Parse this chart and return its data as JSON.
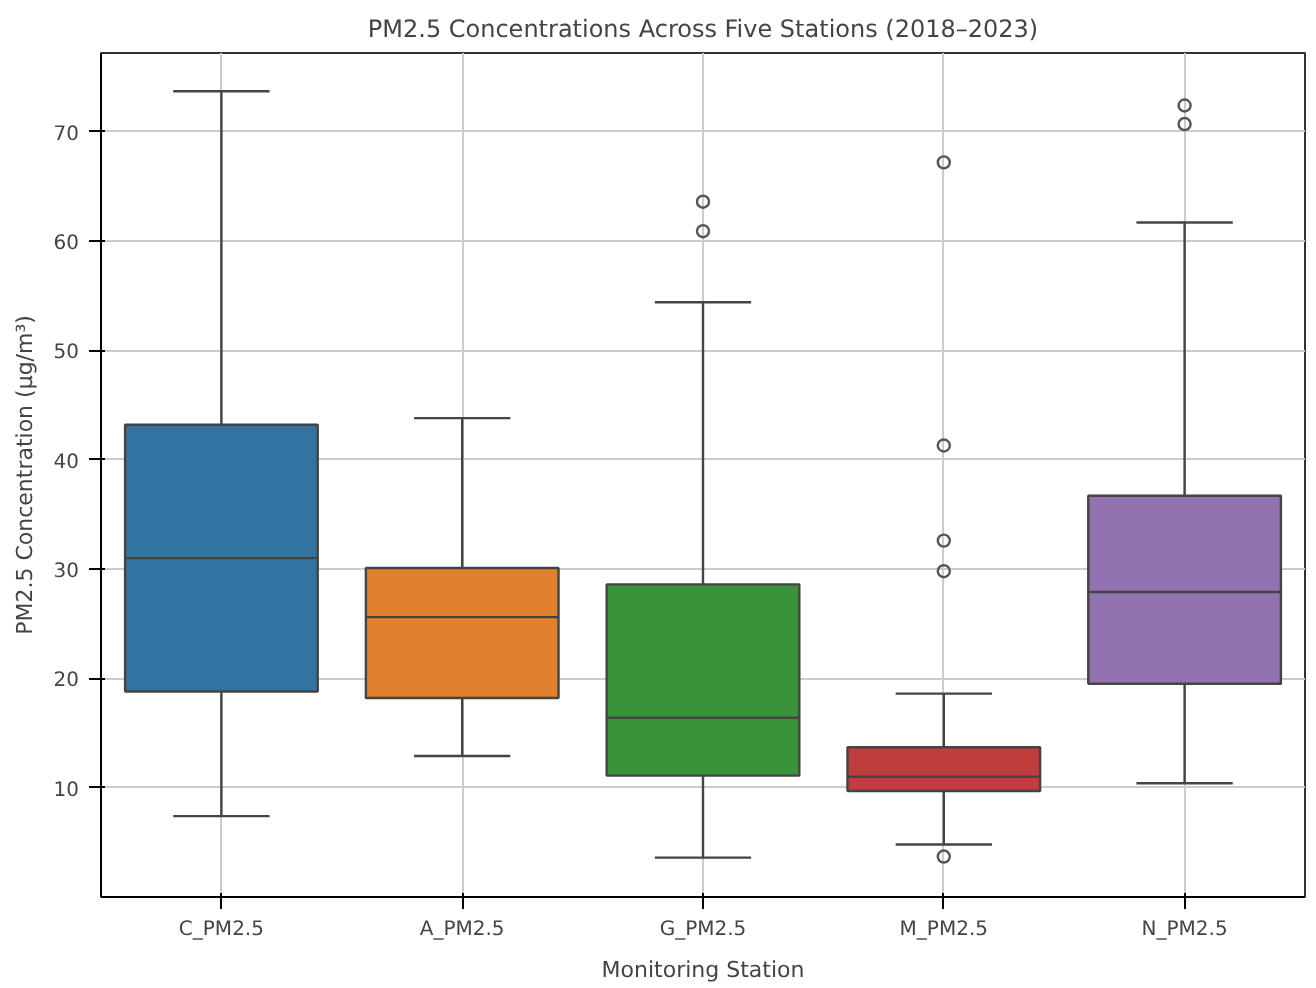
{
  "chart_data": {
    "type": "box",
    "title": "PM2.5 Concentrations Across Five Stations (2018–2023)",
    "xlabel": "Monitoring Station",
    "ylabel": "PM2.5 Concentration (μg/m³)",
    "categories": [
      "C_PM2.5",
      "A_PM2.5",
      "G_PM2.5",
      "M_PM2.5",
      "N_PM2.5"
    ],
    "colors": [
      "#3274a1",
      "#e1812c",
      "#3a923a",
      "#c03d3e",
      "#9372b2"
    ],
    "boxes": [
      {
        "low": 7.4,
        "q1": 18.8,
        "median": 31.0,
        "q3": 43.2,
        "high": 73.7
      },
      {
        "low": 12.9,
        "q1": 18.2,
        "median": 25.6,
        "q3": 30.1,
        "high": 43.8
      },
      {
        "low": 3.6,
        "q1": 11.1,
        "median": 16.4,
        "q3": 28.6,
        "high": 54.4,
        "outliers": [
          63.6,
          60.9
        ]
      },
      {
        "low": 4.8,
        "q1": 9.7,
        "median": 11.0,
        "q3": 13.7,
        "high": 18.6,
        "outliers": [
          67.2,
          41.3,
          32.6,
          29.8,
          3.7
        ]
      },
      {
        "low": 10.4,
        "q1": 19.5,
        "median": 27.9,
        "q3": 36.7,
        "high": 61.7,
        "outliers": [
          72.4,
          70.7
        ]
      }
    ],
    "ylim": [
      0,
      77.2
    ],
    "yticks": [
      10,
      20,
      30,
      40,
      50,
      60,
      70
    ],
    "grid": true
  }
}
